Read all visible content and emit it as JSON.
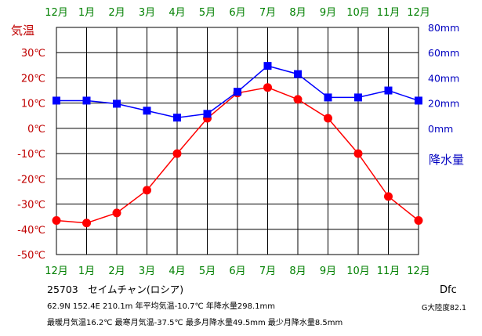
{
  "chart_data": {
    "type": "line",
    "categories": [
      "12月",
      "1月",
      "2月",
      "3月",
      "4月",
      "5月",
      "6月",
      "7月",
      "8月",
      "9月",
      "10月",
      "11月",
      "12月"
    ],
    "series": [
      {
        "axis": "left",
        "color": "#ff0000",
        "marker": "circle",
        "values": [
          -36.5,
          -37.5,
          -33.5,
          -24.5,
          -10.0,
          4.0,
          14.0,
          16.2,
          11.5,
          4.0,
          -10.0,
          -27.0,
          -36.5
        ]
      },
      {
        "axis": "right",
        "color": "#0000ff",
        "marker": "square",
        "values": [
          22.0,
          22.0,
          19.5,
          14.0,
          8.5,
          11.5,
          29.0,
          49.5,
          43.0,
          24.5,
          24.5,
          30.0,
          22.0
        ]
      }
    ],
    "left_axis": {
      "label": "気温",
      "color": "#c00000",
      "ticks": [
        "30℃",
        "20℃",
        "10℃",
        "0℃",
        "-10℃",
        "-20℃",
        "-30℃",
        "-40℃",
        "-50℃"
      ],
      "range": [
        -50,
        40
      ]
    },
    "right_axis": {
      "label": "降水量",
      "color": "#0000c0",
      "ticks": [
        "80mm",
        "60mm",
        "40mm",
        "20mm",
        "0mm"
      ],
      "range": [
        -100,
        80
      ]
    },
    "month_label_color": "#008000",
    "grid": true
  },
  "info": {
    "station": "25703　セイムチャン(ロシア)",
    "line1": "62.9N  152.4E  210.1m 年平均気温-10.7℃ 年降水量298.1mm",
    "line2": "最暖月気温16.2℃ 最寒月気温-37.5℃ 最多月降水量49.5mm 最少月降水量8.5mm",
    "climate_code": "Dfc",
    "continent": "G大陸度82.1"
  }
}
